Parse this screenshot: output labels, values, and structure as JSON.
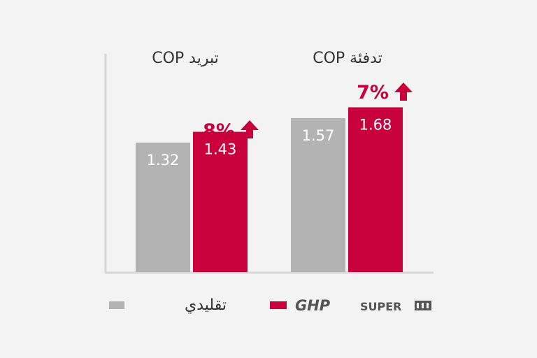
{
  "chart_data": {
    "type": "bar",
    "groups": [
      {
        "title": "تبريد COP",
        "increase": "8%"
      },
      {
        "title": "تدفئة COP",
        "increase": "7%"
      }
    ],
    "series": [
      {
        "name": "تقليدي",
        "color": "#b3b3b3",
        "values": [
          1.32,
          1.57
        ]
      },
      {
        "name": "GHP SUPER III",
        "color": "#c8003c",
        "values": [
          1.43,
          1.68
        ]
      }
    ],
    "legend": {
      "placement": "bottom",
      "conventional_label": "تقليدي",
      "brand_ghp": "GHP",
      "brand_super": "SUPER",
      "brand_mark": "III"
    },
    "colors": {
      "accent": "#c8003c",
      "gray": "#b3b3b3",
      "axis": "#d6d6d6"
    },
    "icons": {
      "increase": "arrow-up-icon"
    }
  }
}
